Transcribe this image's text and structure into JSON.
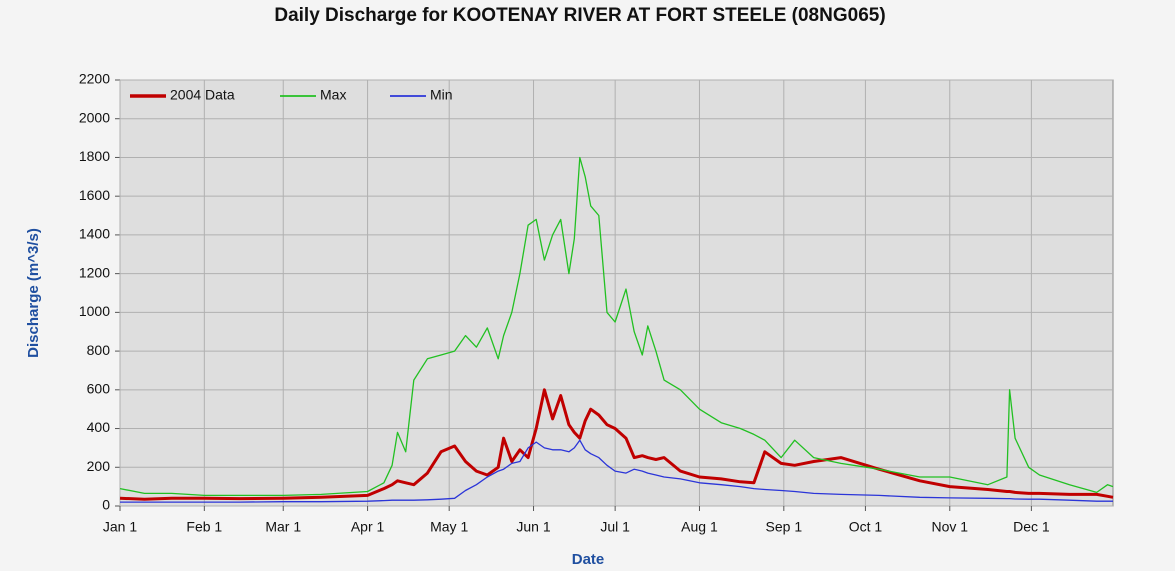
{
  "chart_data": {
    "type": "line",
    "title": "Daily Discharge for KOOTENAY RIVER AT FORT STEELE (08NG065)",
    "x_label": "Date",
    "y_label": "Discharge (m^3/s)",
    "x": [
      1,
      10,
      20,
      32,
      45,
      61,
      75,
      92,
      98,
      101,
      103,
      106,
      109,
      114,
      119,
      124,
      128,
      132,
      136,
      140,
      142,
      145,
      148,
      151,
      154,
      157,
      160,
      163,
      166,
      168,
      170,
      172,
      174,
      177,
      180,
      183,
      187,
      190,
      193,
      195,
      198,
      201,
      207,
      214,
      222,
      229,
      234,
      238,
      244,
      249,
      256,
      266,
      280,
      295,
      306,
      320,
      327,
      328,
      330,
      335,
      339,
      350,
      360,
      364,
      366
    ],
    "series": [
      {
        "name": "2004 Data",
        "color": "#c00000",
        "width": 3,
        "values": [
          40,
          35,
          40,
          40,
          38,
          40,
          45,
          55,
          90,
          110,
          130,
          120,
          110,
          170,
          280,
          310,
          230,
          180,
          160,
          200,
          350,
          230,
          290,
          250,
          400,
          600,
          450,
          570,
          420,
          380,
          350,
          440,
          500,
          470,
          420,
          400,
          350,
          250,
          260,
          250,
          240,
          250,
          180,
          150,
          140,
          125,
          120,
          280,
          220,
          210,
          230,
          250,
          190,
          130,
          100,
          85,
          75,
          75,
          70,
          65,
          65,
          60,
          60,
          50,
          45
        ]
      },
      {
        "name": "Max",
        "color": "#22c022",
        "width": 1.3,
        "values": [
          90,
          65,
          65,
          55,
          55,
          55,
          60,
          75,
          120,
          210,
          380,
          280,
          650,
          760,
          780,
          800,
          880,
          820,
          920,
          760,
          880,
          1000,
          1200,
          1450,
          1480,
          1270,
          1400,
          1480,
          1200,
          1380,
          1800,
          1700,
          1550,
          1500,
          1000,
          950,
          1120,
          900,
          780,
          930,
          800,
          650,
          600,
          500,
          430,
          400,
          370,
          340,
          250,
          340,
          250,
          220,
          190,
          150,
          150,
          110,
          150,
          600,
          350,
          200,
          160,
          110,
          70,
          110,
          100
        ]
      },
      {
        "name": "Min",
        "color": "#2b35d8",
        "width": 1.3,
        "values": [
          20,
          20,
          20,
          20,
          20,
          22,
          22,
          25,
          28,
          30,
          30,
          30,
          30,
          32,
          35,
          40,
          80,
          110,
          150,
          180,
          190,
          220,
          230,
          300,
          330,
          300,
          290,
          290,
          280,
          300,
          340,
          290,
          270,
          250,
          210,
          180,
          170,
          190,
          180,
          170,
          160,
          150,
          140,
          120,
          110,
          100,
          90,
          85,
          80,
          75,
          65,
          60,
          55,
          45,
          42,
          40,
          38,
          38,
          36,
          35,
          35,
          30,
          25,
          25,
          25
        ]
      }
    ],
    "xlim": [
      1,
      366
    ],
    "xticks": [
      {
        "value": 1,
        "label": "Jan 1"
      },
      {
        "value": 32,
        "label": "Feb 1"
      },
      {
        "value": 61,
        "label": "Mar 1"
      },
      {
        "value": 92,
        "label": "Apr 1"
      },
      {
        "value": 122,
        "label": "May 1"
      },
      {
        "value": 153,
        "label": "Jun 1"
      },
      {
        "value": 183,
        "label": "Jul 1"
      },
      {
        "value": 214,
        "label": "Aug 1"
      },
      {
        "value": 245,
        "label": "Sep 1"
      },
      {
        "value": 275,
        "label": "Oct 1"
      },
      {
        "value": 306,
        "label": "Nov 1"
      },
      {
        "value": 336,
        "label": "Dec 1"
      }
    ],
    "ylim": [
      0,
      2200
    ],
    "yticks": [
      0,
      200,
      400,
      600,
      800,
      1000,
      1200,
      1400,
      1600,
      1800,
      2000,
      2200
    ],
    "grid": true,
    "legend": "top-left",
    "plot_background": "#dedede"
  }
}
